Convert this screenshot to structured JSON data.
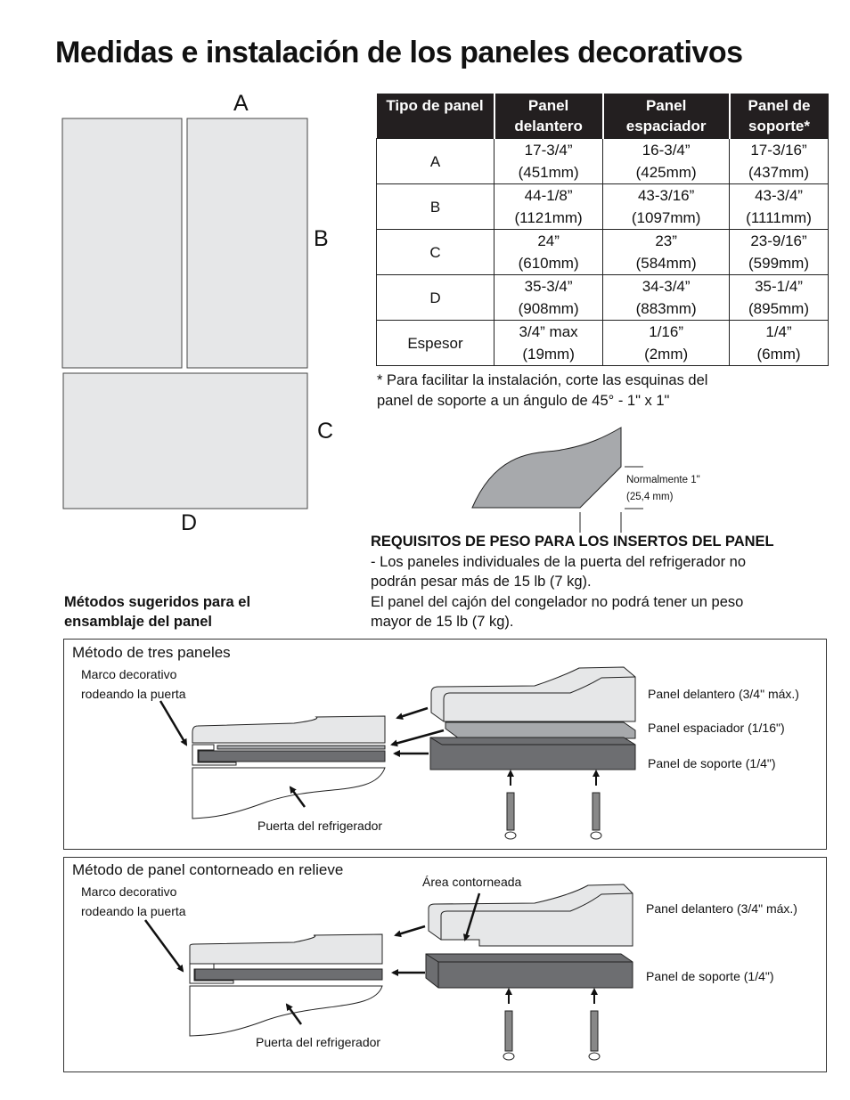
{
  "title": "Medidas e instalación de los paneles decorativos",
  "panel_labels": {
    "a": "A",
    "b": "B",
    "c": "C",
    "d": "D"
  },
  "table": {
    "headers": [
      [
        "Tipo de panel"
      ],
      [
        "Panel",
        "delantero"
      ],
      [
        "Panel",
        "espaciador"
      ],
      [
        "Panel de",
        "soporte*"
      ]
    ],
    "rows": [
      {
        "type": "A",
        "cells": [
          [
            "17-3/4”",
            "(451mm)"
          ],
          [
            "16-3/4”",
            "(425mm)"
          ],
          [
            "17-3/16”",
            "(437mm)"
          ]
        ]
      },
      {
        "type": "B",
        "cells": [
          [
            "44-1/8”",
            "(1121mm)"
          ],
          [
            "43-3/16”",
            "(1097mm)"
          ],
          [
            "43-3/4”",
            "(1111mm)"
          ]
        ]
      },
      {
        "type": "C",
        "cells": [
          [
            "24”",
            "(610mm)"
          ],
          [
            "23”",
            "(584mm)"
          ],
          [
            "23-9/16”",
            "(599mm)"
          ]
        ]
      },
      {
        "type": "D",
        "cells": [
          [
            "35-3/4”",
            "(908mm)"
          ],
          [
            "34-3/4”",
            "(883mm)"
          ],
          [
            "35-1/4”",
            "(895mm)"
          ]
        ]
      },
      {
        "type": "Espesor",
        "cells": [
          [
            "3/4” max",
            "(19mm)"
          ],
          [
            "1/16”",
            "(2mm)"
          ],
          [
            "1/4”",
            "(6mm)"
          ]
        ]
      }
    ]
  },
  "footnote": [
    "* Para facilitar la instalación, corte las esquinas del",
    "panel de soporte a un ángulo de 45° - 1\" x 1\""
  ],
  "corner": {
    "label1": "Normalmente 1\"",
    "label2": "(25,4 mm)"
  },
  "weight": {
    "heading": "REQUISITOS DE PESO PARA LOS INSERTOS DEL PANEL",
    "lines": [
      "- Los paneles individuales de la puerta del refrigerador no",
      "podrán pesar más de 15 lb (7 kg).",
      "El panel del cajón del congelador no podrá tener un peso",
      "mayor de 15 lb (7 kg)."
    ]
  },
  "methods_heading": [
    "Métodos sugeridos para el",
    "ensamblaje del panel"
  ],
  "method1": {
    "title": "Método de tres paneles",
    "trim": [
      "Marco decorativo",
      "rodeando la puerta"
    ],
    "door": "Puerta del refrigerador",
    "front": "Panel delantero (3/4\" máx.)",
    "spacer": "Panel espaciador (1/16\")",
    "support": "Panel de soporte (1/4\")"
  },
  "method2": {
    "title": "Método de panel contorneado en relieve",
    "trim": [
      "Marco decorativo",
      "rodeando la puerta"
    ],
    "contour": "Área contorneada",
    "door": "Puerta del refrigerador",
    "front": "Panel delantero (3/4\" máx.)",
    "support": "Panel de soporte (1/4\")"
  },
  "colors": {
    "panel_light": "#e6e7e8",
    "spacer": "#a7a9ac",
    "support": "#6d6e71",
    "header_bg": "#231f20"
  }
}
